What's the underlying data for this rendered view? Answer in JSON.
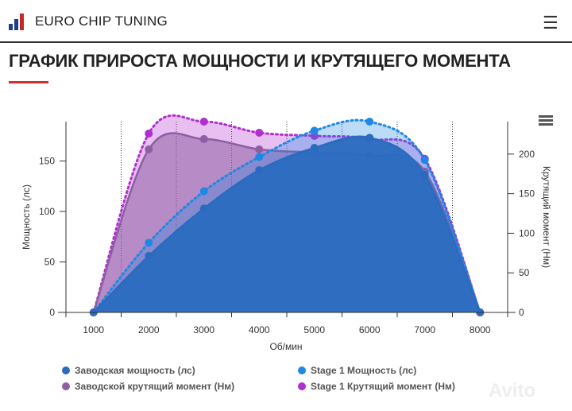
{
  "header": {
    "brand": "EURO CHIP TUNING",
    "menu_icon": "hamburger-icon"
  },
  "page_title": "ГРАФИК ПРИРОСТА МОЩНОСТИ И КРУТЯЩЕГО МОМЕНТА",
  "colors": {
    "accent": "#d32f2f",
    "factory_power": "#2a6bbf",
    "stage1_power": "#1e88e5",
    "factory_torque": "#8e5ea2",
    "stage1_torque": "#b02fd0"
  },
  "chart_data": {
    "type": "area",
    "xlabel": "Об/мин",
    "ylabel_left": "Мощность (лс)",
    "ylabel_right": "Крутящий момент (Нм)",
    "categories": [
      "1000",
      "2000",
      "3000",
      "4000",
      "5000",
      "6000",
      "7000",
      "8000"
    ],
    "left_ticks": [
      "0",
      "50",
      "100",
      "150"
    ],
    "right_ticks": [
      "0",
      "50",
      "100",
      "150",
      "200"
    ],
    "ylim_left": [
      0,
      189
    ],
    "ylim_right": [
      0,
      241
    ],
    "legend_placement": "bottom",
    "series": [
      {
        "name": "Заводская мощность (лс)",
        "axis": "left",
        "values": [
          0,
          56,
          103,
          141,
          163,
          173,
          136,
          0
        ]
      },
      {
        "name": "Заводской крутящий момент (Нм)",
        "axis": "right",
        "values": [
          0,
          206,
          219,
          206,
          202,
          198,
          178,
          0
        ]
      },
      {
        "name": "Stage 1 Мощность (лс)",
        "axis": "left",
        "values": [
          0,
          69,
          120,
          154,
          180,
          189,
          151,
          0
        ]
      },
      {
        "name": "Stage 1 Крутящий момент (Нм)",
        "axis": "right",
        "values": [
          0,
          226,
          241,
          227,
          223,
          219,
          194,
          0
        ]
      }
    ]
  },
  "watermark": "Avito"
}
